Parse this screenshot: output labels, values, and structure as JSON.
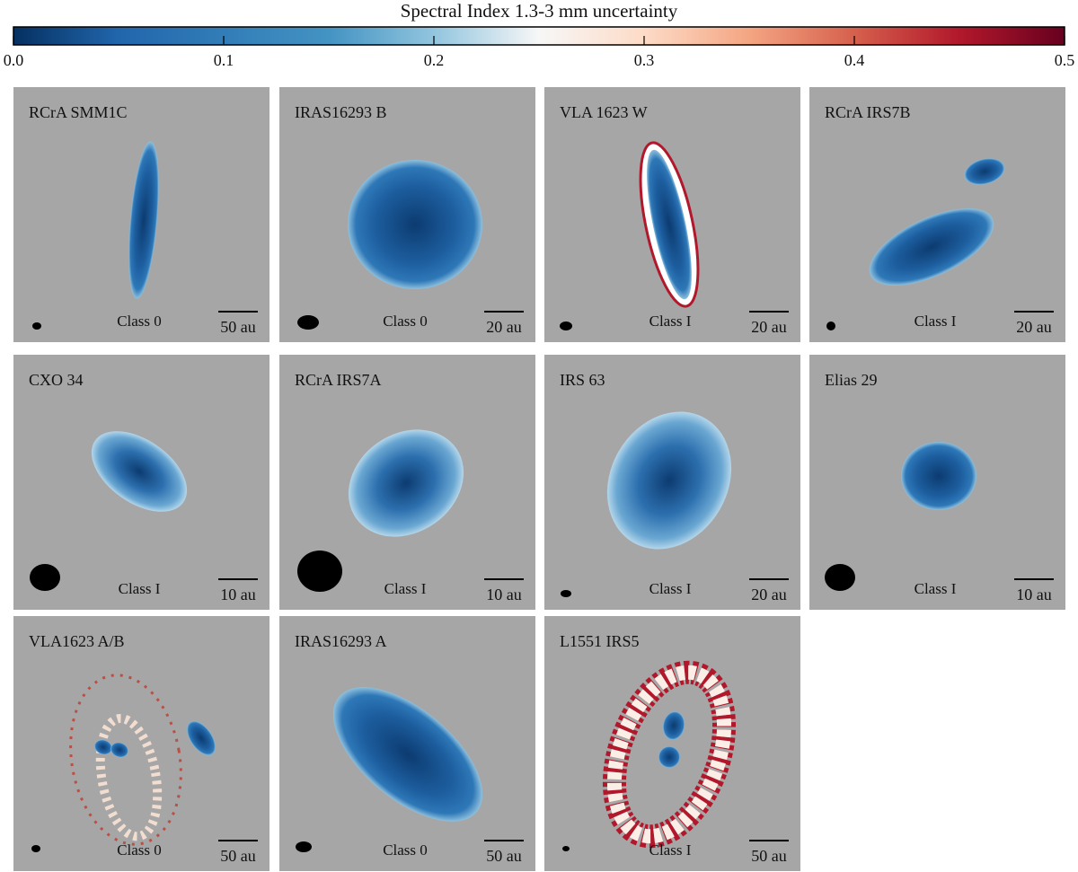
{
  "chart_data": {
    "type": "image-grid",
    "title": "Spectral Index 1.3-3 mm uncertainty",
    "clim": [
      0,
      0.5
    ],
    "cticks": [
      {
        "value": 0,
        "label": "0.0"
      },
      0.1,
      0.2,
      0.3,
      0.4,
      0.5
    ],
    "panels": [
      {
        "name": "RCrA SMM1C",
        "class": "Class 0",
        "scale": "50 au"
      },
      {
        "name": "IRAS16293 B",
        "class": "Class 0",
        "scale": "20 au"
      },
      {
        "name": "VLA 1623 W",
        "class": "Class I",
        "scale": "20 au"
      },
      {
        "name": "RCrA IRS7B",
        "class": "Class I",
        "scale": "20 au"
      },
      {
        "name": "CXO 34",
        "class": "Class I",
        "scale": "10 au"
      },
      {
        "name": "RCrA IRS7A",
        "class": "Class I",
        "scale": "10 au"
      },
      {
        "name": "IRS 63",
        "class": "Class I",
        "scale": "20 au"
      },
      {
        "name": "Elias 29",
        "class": "Class I",
        "scale": "10 au"
      },
      {
        "name": "VLA1623 A/B",
        "class": "Class 0",
        "scale": "50 au"
      },
      {
        "name": "IRAS16293 A",
        "class": "Class 0",
        "scale": "50 au"
      },
      {
        "name": "L1551 IRS5",
        "class": "Class I",
        "scale": "50 au"
      }
    ]
  }
}
